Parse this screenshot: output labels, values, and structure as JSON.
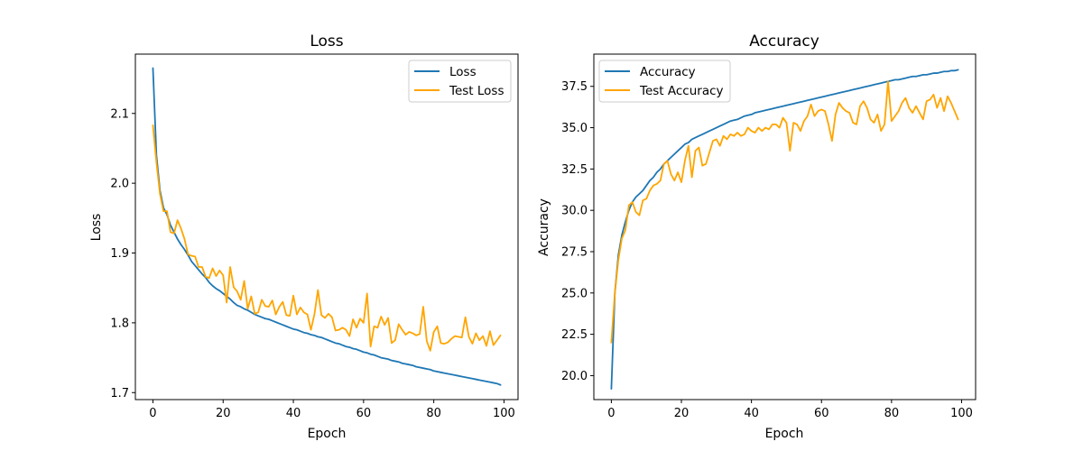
{
  "chart_data": [
    {
      "type": "line",
      "title": "Loss",
      "xlabel": "Epoch",
      "ylabel": "Loss",
      "xlim": [
        -5,
        104
      ],
      "ylim": [
        1.69,
        2.185
      ],
      "xticks": [
        0,
        20,
        40,
        60,
        80,
        100
      ],
      "yticks": [
        1.7,
        1.8,
        1.9,
        2.0,
        2.1
      ],
      "xtick_labels": [
        "0",
        "20",
        "40",
        "60",
        "80",
        "100"
      ],
      "ytick_labels": [
        "1.7",
        "1.8",
        "1.9",
        "2.0",
        "2.1"
      ],
      "grid": false,
      "legend_position": "top-right",
      "series": [
        {
          "name": "Loss",
          "color": "#1f77b4",
          "values": [
            2.165,
            2.04,
            1.99,
            1.965,
            1.955,
            1.94,
            1.93,
            1.92,
            1.912,
            1.905,
            1.897,
            1.888,
            1.882,
            1.876,
            1.87,
            1.865,
            1.858,
            1.853,
            1.849,
            1.846,
            1.842,
            1.838,
            1.834,
            1.829,
            1.825,
            1.823,
            1.82,
            1.818,
            1.815,
            1.812,
            1.81,
            1.808,
            1.806,
            1.805,
            1.803,
            1.801,
            1.799,
            1.797,
            1.795,
            1.793,
            1.791,
            1.79,
            1.788,
            1.786,
            1.785,
            1.783,
            1.782,
            1.78,
            1.779,
            1.777,
            1.775,
            1.773,
            1.771,
            1.77,
            1.768,
            1.766,
            1.765,
            1.763,
            1.762,
            1.76,
            1.758,
            1.757,
            1.755,
            1.754,
            1.752,
            1.75,
            1.749,
            1.748,
            1.746,
            1.745,
            1.744,
            1.742,
            1.741,
            1.74,
            1.739,
            1.737,
            1.736,
            1.735,
            1.734,
            1.733,
            1.731,
            1.73,
            1.729,
            1.728,
            1.727,
            1.726,
            1.725,
            1.724,
            1.723,
            1.722,
            1.721,
            1.72,
            1.719,
            1.718,
            1.717,
            1.716,
            1.715,
            1.714,
            1.713,
            1.711
          ]
        },
        {
          "name": "Test Loss",
          "color": "#ffa500",
          "values": [
            2.083,
            2.03,
            1.985,
            1.96,
            1.96,
            1.93,
            1.928,
            1.947,
            1.935,
            1.92,
            1.898,
            1.896,
            1.895,
            1.88,
            1.88,
            1.866,
            1.864,
            1.878,
            1.867,
            1.875,
            1.868,
            1.829,
            1.88,
            1.851,
            1.845,
            1.833,
            1.86,
            1.82,
            1.838,
            1.813,
            1.815,
            1.833,
            1.824,
            1.823,
            1.832,
            1.812,
            1.823,
            1.83,
            1.811,
            1.81,
            1.839,
            1.812,
            1.822,
            1.815,
            1.812,
            1.79,
            1.812,
            1.847,
            1.811,
            1.807,
            1.813,
            1.808,
            1.789,
            1.79,
            1.793,
            1.79,
            1.781,
            1.805,
            1.793,
            1.806,
            1.8,
            1.842,
            1.766,
            1.795,
            1.793,
            1.809,
            1.797,
            1.807,
            1.771,
            1.775,
            1.798,
            1.79,
            1.783,
            1.787,
            1.785,
            1.782,
            1.784,
            1.823,
            1.774,
            1.76,
            1.787,
            1.795,
            1.771,
            1.77,
            1.772,
            1.777,
            1.781,
            1.78,
            1.779,
            1.808,
            1.78,
            1.77,
            1.785,
            1.775,
            1.781,
            1.767,
            1.788,
            1.768,
            1.775,
            1.782
          ]
        }
      ]
    },
    {
      "type": "line",
      "title": "Accuracy",
      "xlabel": "Epoch",
      "ylabel": "Accuracy",
      "xlim": [
        -5,
        104
      ],
      "ylim": [
        18.55,
        39.45
      ],
      "xticks": [
        0,
        20,
        40,
        60,
        80,
        100
      ],
      "yticks": [
        20.0,
        22.5,
        25.0,
        27.5,
        30.0,
        32.5,
        35.0,
        37.5
      ],
      "xtick_labels": [
        "0",
        "20",
        "40",
        "60",
        "80",
        "100"
      ],
      "ytick_labels": [
        "20.0",
        "22.5",
        "25.0",
        "27.5",
        "30.0",
        "32.5",
        "35.0",
        "37.5"
      ],
      "grid": false,
      "legend_position": "top-left",
      "series": [
        {
          "name": "Accuracy",
          "color": "#1f77b4",
          "values": [
            19.2,
            25.0,
            27.3,
            28.5,
            29.3,
            30.0,
            30.5,
            30.8,
            31.0,
            31.2,
            31.5,
            31.8,
            32.0,
            32.3,
            32.5,
            32.8,
            33.0,
            33.2,
            33.4,
            33.6,
            33.8,
            34.0,
            34.1,
            34.3,
            34.4,
            34.5,
            34.6,
            34.7,
            34.8,
            34.9,
            35.0,
            35.1,
            35.2,
            35.3,
            35.4,
            35.45,
            35.5,
            35.6,
            35.7,
            35.75,
            35.8,
            35.9,
            35.95,
            36.0,
            36.05,
            36.1,
            36.15,
            36.2,
            36.25,
            36.3,
            36.35,
            36.4,
            36.45,
            36.5,
            36.55,
            36.6,
            36.65,
            36.7,
            36.75,
            36.8,
            36.85,
            36.9,
            36.95,
            37.0,
            37.05,
            37.1,
            37.15,
            37.2,
            37.25,
            37.3,
            37.35,
            37.4,
            37.45,
            37.5,
            37.55,
            37.6,
            37.65,
            37.7,
            37.75,
            37.8,
            37.85,
            37.9,
            37.9,
            37.95,
            38.0,
            38.05,
            38.1,
            38.1,
            38.15,
            38.2,
            38.2,
            38.25,
            38.3,
            38.3,
            38.35,
            38.4,
            38.4,
            38.45,
            38.45,
            38.5
          ]
        },
        {
          "name": "Test Accuracy",
          "color": "#ffa500",
          "values": [
            22.0,
            25.0,
            27.0,
            28.3,
            28.8,
            30.3,
            30.5,
            29.9,
            29.7,
            30.6,
            30.7,
            31.2,
            31.5,
            31.6,
            31.8,
            32.8,
            33.0,
            32.2,
            31.8,
            32.3,
            31.7,
            33.0,
            33.9,
            32.0,
            33.6,
            33.8,
            32.7,
            32.8,
            33.5,
            34.2,
            34.3,
            33.9,
            34.5,
            34.3,
            34.6,
            34.5,
            34.7,
            34.5,
            34.6,
            35.0,
            34.8,
            34.7,
            35.0,
            34.8,
            35.0,
            34.9,
            35.2,
            35.2,
            35.0,
            35.6,
            35.3,
            33.6,
            35.3,
            35.2,
            34.8,
            35.4,
            35.7,
            36.4,
            35.7,
            36.0,
            36.1,
            36.0,
            35.2,
            34.2,
            35.8,
            36.5,
            36.2,
            36.0,
            35.9,
            35.3,
            35.2,
            36.3,
            36.6,
            36.2,
            35.5,
            35.3,
            35.8,
            34.8,
            35.2,
            37.8,
            35.4,
            35.7,
            36.0,
            36.5,
            36.8,
            36.2,
            35.9,
            36.3,
            35.9,
            35.5,
            36.6,
            36.7,
            37.0,
            36.2,
            36.8,
            36.0,
            36.9,
            36.5,
            36.0,
            35.5
          ]
        }
      ]
    }
  ]
}
